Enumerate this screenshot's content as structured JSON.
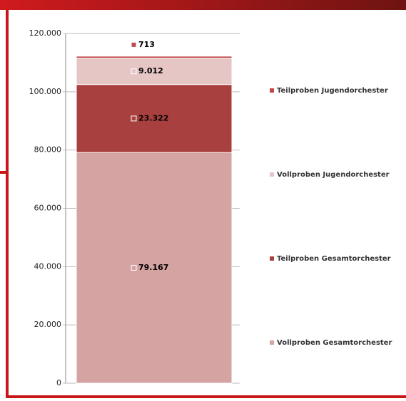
{
  "chart_data": {
    "type": "stacked_bar",
    "categories": [
      null
    ],
    "series": [
      {
        "name": "Vollproben Gesamtorchester",
        "color": "#d6a3a3",
        "values": [
          79167
        ],
        "value_labels": [
          "79.167"
        ]
      },
      {
        "name": "Teilproben Gesamtorchester",
        "color": "#a8403f",
        "values": [
          23322
        ],
        "value_labels": [
          "23.322"
        ]
      },
      {
        "name": "Vollproben Jugendorchester",
        "color": "#e6c5c5",
        "values": [
          9012
        ],
        "value_labels": [
          "9.012"
        ]
      },
      {
        "name": "Teilproben Jugendorchester",
        "color": "#c2494a",
        "values": [
          713
        ],
        "value_labels": [
          "713"
        ]
      }
    ],
    "ylim": [
      0,
      120000
    ],
    "yticks": [
      0,
      {
        "value": 20000,
        "label": "20.000"
      },
      {
        "value": 40000,
        "label": "40.000"
      },
      {
        "value": 60000,
        "label": "60.000"
      },
      {
        "value": 80000,
        "label": "80.000"
      },
      {
        "value": 100000,
        "label": "100.000"
      },
      {
        "value": 120000,
        "label": "120.000"
      }
    ],
    "grid": true,
    "legend": "right"
  }
}
